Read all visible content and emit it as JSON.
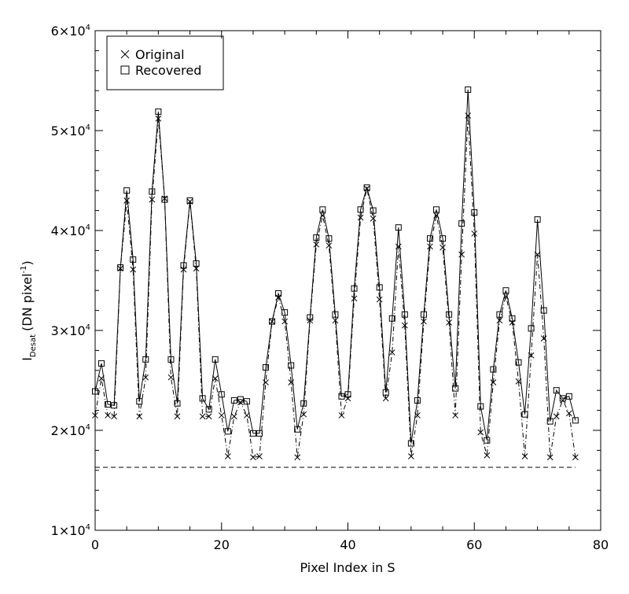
{
  "chart_data": {
    "type": "line",
    "title": "",
    "xlabel": "Pixel Index in S",
    "ylabel_main": "I",
    "ylabel_sub": "Desat",
    "ylabel_unit": "(DN pixel",
    "ylabel_unit_exp": "-1",
    "ylabel_unit_close": ")",
    "xlim": [
      0,
      80
    ],
    "ylim": [
      10000,
      60000
    ],
    "x_ticks": [
      0,
      20,
      40,
      60,
      80
    ],
    "x_tick_labels": [
      "0",
      "20",
      "40",
      "60",
      "80"
    ],
    "y_ticks": [
      10000,
      20000,
      30000,
      40000,
      50000,
      60000
    ],
    "y_tick_mantissa": [
      "1",
      "2",
      "3",
      "4",
      "5",
      "6"
    ],
    "y_tick_base": "×10",
    "y_tick_exp": "4",
    "grid": false,
    "legend_position": "top-left",
    "legend": [
      {
        "symbol": "×",
        "label": "Original",
        "style": "dash-dot"
      },
      {
        "symbol": "□",
        "label": "Recovered",
        "style": "solid"
      }
    ],
    "threshold_line": {
      "y": 16300,
      "x_start": 0,
      "x_end": 76,
      "style": "dashed"
    },
    "series": [
      {
        "name": "Original",
        "marker": "x",
        "line": "dash-dot",
        "x": [
          0,
          1,
          2,
          3,
          4,
          5,
          6,
          7,
          8,
          9,
          10,
          11,
          12,
          13,
          14,
          15,
          16,
          17,
          18,
          19,
          20,
          21,
          22,
          23,
          24,
          25,
          26,
          27,
          28,
          29,
          30,
          31,
          32,
          33,
          34,
          35,
          36,
          37,
          38,
          39,
          40,
          41,
          42,
          43,
          44,
          45,
          46,
          47,
          48,
          49,
          50,
          51,
          52,
          53,
          54,
          55,
          56,
          57,
          58,
          59,
          60,
          61,
          62,
          63,
          64,
          65,
          66,
          67,
          68,
          69,
          70,
          71,
          72,
          73,
          74,
          75,
          76
        ],
        "y": [
          21500,
          25200,
          21500,
          21400,
          36200,
          43000,
          36100,
          21400,
          25300,
          43100,
          51200,
          43200,
          25300,
          21400,
          36100,
          42900,
          36200,
          21400,
          21400,
          25200,
          21500,
          17400,
          21400,
          22800,
          21500,
          17300,
          17400,
          24800,
          30900,
          33300,
          30900,
          24800,
          17300,
          21600,
          31000,
          38600,
          41500,
          38500,
          31000,
          21500,
          23200,
          33200,
          41300,
          44200,
          41200,
          33100,
          23200,
          27800,
          38400,
          30500,
          17400,
          21500,
          30900,
          38400,
          41500,
          38300,
          30800,
          21500,
          37600,
          51500,
          39700,
          19800,
          17500,
          24800,
          31000,
          33400,
          30800,
          24900,
          17400,
          27500,
          37600,
          29200,
          17300,
          21400,
          23000,
          21700,
          17300
        ]
      },
      {
        "name": "Recovered",
        "marker": "square",
        "line": "solid",
        "x": [
          0,
          1,
          2,
          3,
          4,
          5,
          6,
          7,
          8,
          9,
          10,
          11,
          12,
          13,
          14,
          15,
          16,
          17,
          18,
          19,
          20,
          21,
          22,
          23,
          24,
          25,
          26,
          27,
          28,
          29,
          30,
          31,
          32,
          33,
          34,
          35,
          36,
          37,
          38,
          39,
          40,
          41,
          42,
          43,
          44,
          45,
          46,
          47,
          48,
          49,
          50,
          51,
          52,
          53,
          54,
          55,
          56,
          57,
          58,
          59,
          60,
          61,
          62,
          63,
          64,
          65,
          66,
          67,
          68,
          69,
          70,
          71,
          72,
          73,
          74,
          75,
          76
        ],
        "y": [
          23900,
          26700,
          22600,
          22500,
          36300,
          44000,
          37100,
          22900,
          27100,
          43900,
          51900,
          43100,
          27100,
          22700,
          36500,
          43000,
          36700,
          23200,
          22100,
          27100,
          23600,
          19900,
          23000,
          23100,
          22900,
          19700,
          19700,
          26300,
          30900,
          33700,
          31800,
          26500,
          20100,
          22700,
          31300,
          39300,
          42100,
          39200,
          31600,
          23400,
          23600,
          34200,
          42100,
          44300,
          42000,
          34300,
          23800,
          31200,
          40300,
          31600,
          18700,
          23000,
          31600,
          39200,
          42100,
          39200,
          31600,
          24200,
          40700,
          54100,
          41800,
          22400,
          19000,
          26100,
          31600,
          34000,
          31200,
          26800,
          21600,
          30200,
          41100,
          32000,
          20900,
          24000,
          23200,
          23400,
          21000
        ]
      }
    ]
  }
}
